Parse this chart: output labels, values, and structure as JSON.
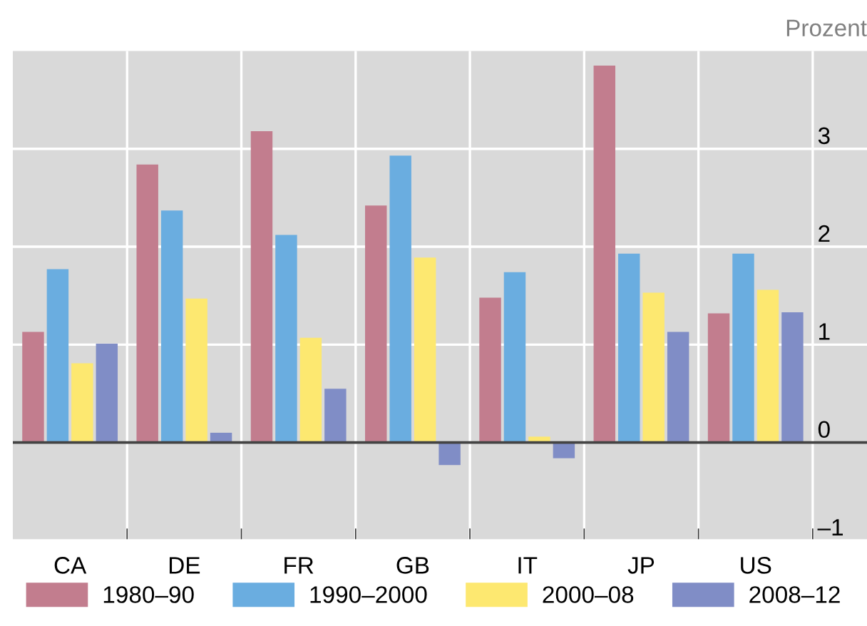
{
  "chart_data": {
    "type": "bar",
    "ylabel": "Prozent",
    "categories": [
      "CA",
      "DE",
      "FR",
      "GB",
      "IT",
      "JP",
      "US"
    ],
    "series": [
      {
        "name": "1980–90",
        "color": "#c27d8e",
        "values": [
          1.13,
          2.84,
          3.18,
          2.42,
          1.48,
          3.85,
          1.32
        ]
      },
      {
        "name": "1990–2000",
        "color": "#6aade0",
        "values": [
          1.77,
          2.37,
          2.12,
          2.93,
          1.74,
          1.93,
          1.93
        ]
      },
      {
        "name": "2000–08",
        "color": "#fde870",
        "values": [
          0.81,
          1.47,
          1.07,
          1.89,
          0.06,
          1.53,
          1.56
        ]
      },
      {
        "name": "2008–12",
        "color": "#808dc6",
        "values": [
          1.01,
          0.1,
          0.55,
          -0.23,
          -0.16,
          1.13,
          1.33
        ]
      }
    ],
    "ylim": [
      -1,
      4
    ],
    "yticks": [
      {
        "value": -1,
        "label": "–1"
      },
      0,
      1,
      2,
      3
    ],
    "grid": true,
    "legend": "bottom"
  }
}
